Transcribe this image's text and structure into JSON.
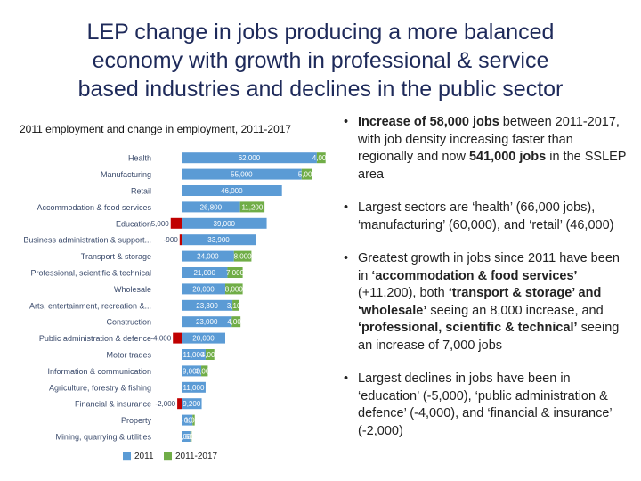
{
  "title_lines": [
    "LEP change in jobs producing a more balanced",
    "economy with growth in professional & service",
    "based industries and declines in the public sector"
  ],
  "chart_caption": "2011 employment and change in employment, 2011-2017",
  "colors": {
    "base": "#5b9bd5",
    "change_pos": "#70ad47",
    "change_neg": "#c00000",
    "label": "#3a4a6b"
  },
  "chart_data": {
    "type": "bar",
    "orientation": "horizontal",
    "stacked": true,
    "title": "2011 employment and change in employment, 2011-2017",
    "legend_position": "bottom",
    "grid": false,
    "categories": [
      "Health",
      "Manufacturing",
      "Retail",
      "Accommodation & food services",
      "Education",
      "Business administration & support...",
      "Transport & storage",
      "Professional, scientific & technical",
      "Wholesale",
      "Arts, entertainment, recreation &...",
      "Construction",
      "Public administration & defence",
      "Motor trades",
      "Information & communication",
      "Agriculture, forestry & fishing",
      "Financial & insurance",
      "Property",
      "Mining, quarrying & utilities"
    ],
    "series": [
      {
        "name": "2011",
        "values": [
          62000,
          55000,
          46000,
          26800,
          39000,
          33900,
          24000,
          21000,
          20000,
          23300,
          23000,
          20000,
          11000,
          9000,
          11000,
          9200,
          5000,
          4000
        ],
        "labels": [
          "62,000",
          "55,000",
          "46,000",
          "26,800",
          "39,000",
          "33,900",
          "24,000",
          "21,000",
          "20,000",
          "23,300",
          "23,000",
          "20,000",
          "11,000",
          "9,000",
          "11,000",
          "9,200",
          "5,000",
          "4,000"
        ]
      },
      {
        "name": "2011-2017",
        "values": [
          4000,
          5000,
          0,
          11200,
          -5000,
          -900,
          8000,
          7000,
          8000,
          3100,
          4000,
          -4000,
          4000,
          3000,
          0,
          -2000,
          1000,
          600
        ],
        "labels": [
          "4,000",
          "5,000",
          "",
          "11,200",
          "-5,000",
          "-900",
          "8,000",
          "7,000",
          "8,000",
          "3,100",
          "4,000",
          "-4,000",
          "4,000",
          "3,000",
          "",
          "-2,000",
          "1,000",
          "600"
        ]
      }
    ]
  },
  "bullets": [
    [
      {
        "t": "Increase of 58,000 jobs",
        "b": true
      },
      {
        "t": " between 2011-2017, with job density increasing faster than regionally and now ",
        "b": false
      },
      {
        "t": "541,000 jobs",
        "b": true
      },
      {
        "t": " in the SSLEP area",
        "b": false
      }
    ],
    [
      {
        "t": "Largest sectors are ‘health’ (66,000 jobs), ‘manufacturing’ (60,000), and ‘retail’ (46,000)",
        "b": false
      }
    ],
    [
      {
        "t": "Greatest growth in jobs since 2011 have been in ",
        "b": false
      },
      {
        "t": "‘accommodation & food services’",
        "b": true
      },
      {
        "t": " (+11,200), both ",
        "b": false
      },
      {
        "t": "‘transport & storage’ and ‘wholesale’",
        "b": true
      },
      {
        "t": " seeing an 8,000 increase, and ",
        "b": false
      },
      {
        "t": "‘professional, scientific & technical’",
        "b": true
      },
      {
        "t": " seeing an increase of 7,000 jobs",
        "b": false
      }
    ],
    [
      {
        "t": "Largest declines in jobs have been in ‘education’ (-5,000), ‘public administration & defence’ (-4,000), and ‘financial & insurance’ (-2,000)",
        "b": false
      }
    ]
  ]
}
